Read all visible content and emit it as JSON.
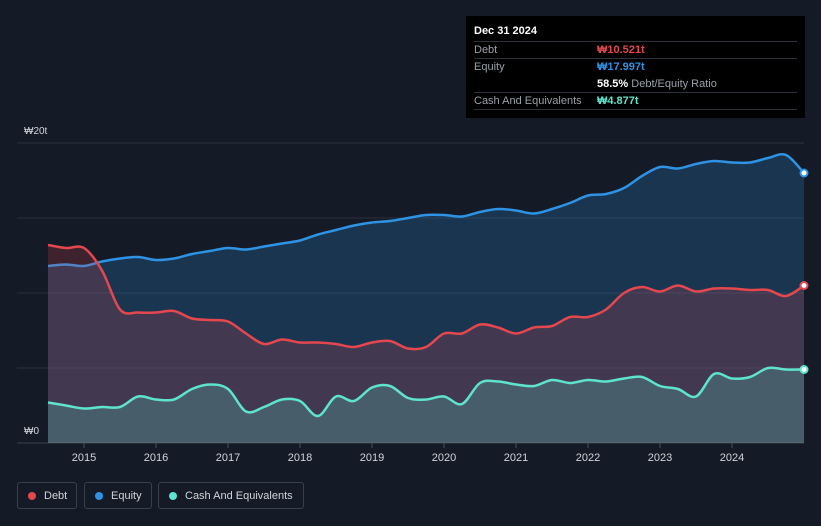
{
  "tooltip": {
    "date": "Dec 31 2024",
    "debt_label": "Debt",
    "debt_value": "₩10.521t",
    "equity_label": "Equity",
    "equity_value": "₩17.997t",
    "ratio_value": "58.5%",
    "ratio_label": "Debt/Equity Ratio",
    "cash_label": "Cash And Equivalents",
    "cash_value": "₩4.877t"
  },
  "legend": {
    "debt": "Debt",
    "equity": "Equity",
    "cash": "Cash And Equivalents"
  },
  "colors": {
    "debt": "#e5474f",
    "equity": "#2e93e4",
    "cash": "#5ee3cc",
    "background": "#151b26"
  },
  "chart_data": {
    "type": "area",
    "y_top_label": "₩20t",
    "y_bottom_label": "₩0",
    "ylim": [
      0,
      20
    ],
    "xlim": [
      2014.5,
      2025.0
    ],
    "x_ticks": [
      "2015",
      "2016",
      "2017",
      "2018",
      "2019",
      "2020",
      "2021",
      "2022",
      "2023",
      "2024"
    ],
    "grid": true,
    "legend_position": "bottom-left",
    "series": [
      {
        "name": "Equity",
        "x": [
          2014.5,
          2014.75,
          2015.0,
          2015.25,
          2015.5,
          2015.75,
          2016.0,
          2016.25,
          2016.5,
          2016.75,
          2017.0,
          2017.25,
          2017.5,
          2017.75,
          2018.0,
          2018.25,
          2018.5,
          2018.75,
          2019.0,
          2019.25,
          2019.5,
          2019.75,
          2020.0,
          2020.25,
          2020.5,
          2020.75,
          2021.0,
          2021.25,
          2021.5,
          2021.75,
          2022.0,
          2022.25,
          2022.5,
          2022.75,
          2023.0,
          2023.25,
          2023.5,
          2023.75,
          2024.0,
          2024.25,
          2024.5,
          2024.75,
          2025.0
        ],
        "values": [
          11.8,
          11.9,
          11.8,
          12.1,
          12.3,
          12.4,
          12.2,
          12.3,
          12.6,
          12.8,
          13.0,
          12.9,
          13.1,
          13.3,
          13.5,
          13.9,
          14.2,
          14.5,
          14.7,
          14.8,
          15.0,
          15.2,
          15.2,
          15.1,
          15.4,
          15.6,
          15.5,
          15.3,
          15.6,
          16.0,
          16.5,
          16.6,
          17.0,
          17.8,
          18.4,
          18.3,
          18.6,
          18.8,
          18.7,
          18.7,
          19.0,
          19.2,
          18.0
        ]
      },
      {
        "name": "Debt",
        "x": [
          2014.5,
          2014.75,
          2015.0,
          2015.25,
          2015.5,
          2015.75,
          2016.0,
          2016.25,
          2016.5,
          2016.75,
          2017.0,
          2017.25,
          2017.5,
          2017.75,
          2018.0,
          2018.25,
          2018.5,
          2018.75,
          2019.0,
          2019.25,
          2019.5,
          2019.75,
          2020.0,
          2020.25,
          2020.5,
          2020.75,
          2021.0,
          2021.25,
          2021.5,
          2021.75,
          2022.0,
          2022.25,
          2022.5,
          2022.75,
          2023.0,
          2023.25,
          2023.5,
          2023.75,
          2024.0,
          2024.25,
          2024.5,
          2024.75,
          2025.0
        ],
        "values": [
          13.2,
          13.0,
          13.0,
          11.5,
          8.9,
          8.7,
          8.7,
          8.8,
          8.3,
          8.2,
          8.1,
          7.3,
          6.6,
          6.9,
          6.7,
          6.7,
          6.6,
          6.4,
          6.7,
          6.8,
          6.3,
          6.4,
          7.3,
          7.3,
          7.9,
          7.7,
          7.3,
          7.7,
          7.8,
          8.4,
          8.4,
          8.9,
          10.0,
          10.4,
          10.1,
          10.5,
          10.1,
          10.3,
          10.3,
          10.2,
          10.2,
          9.8,
          10.5
        ]
      },
      {
        "name": "Cash And Equivalents",
        "x": [
          2014.5,
          2014.75,
          2015.0,
          2015.25,
          2015.5,
          2015.75,
          2016.0,
          2016.25,
          2016.5,
          2016.75,
          2017.0,
          2017.25,
          2017.5,
          2017.75,
          2018.0,
          2018.25,
          2018.5,
          2018.75,
          2019.0,
          2019.25,
          2019.5,
          2019.75,
          2020.0,
          2020.25,
          2020.5,
          2020.75,
          2021.0,
          2021.25,
          2021.5,
          2021.75,
          2022.0,
          2022.25,
          2022.5,
          2022.75,
          2023.0,
          2023.25,
          2023.5,
          2023.75,
          2024.0,
          2024.25,
          2024.5,
          2024.75,
          2025.0
        ],
        "values": [
          2.7,
          2.5,
          2.3,
          2.4,
          2.4,
          3.1,
          2.9,
          2.9,
          3.6,
          3.9,
          3.6,
          2.1,
          2.4,
          2.9,
          2.8,
          1.8,
          3.1,
          2.8,
          3.7,
          3.8,
          3.0,
          2.9,
          3.1,
          2.6,
          4.0,
          4.1,
          3.9,
          3.8,
          4.2,
          4.0,
          4.2,
          4.1,
          4.3,
          4.4,
          3.8,
          3.6,
          3.1,
          4.6,
          4.3,
          4.4,
          5.0,
          4.9,
          4.9
        ]
      }
    ]
  }
}
